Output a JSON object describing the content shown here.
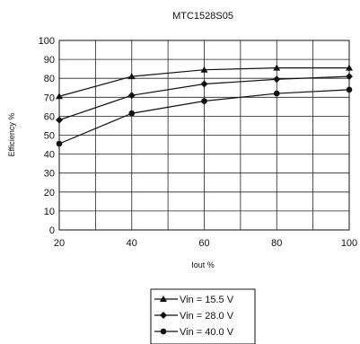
{
  "chart_data": {
    "type": "line",
    "title": "MTC1528S05",
    "xlabel": "Iout %",
    "ylabel": "Efficiency %",
    "xlim": [
      20,
      100
    ],
    "ylim": [
      0,
      100
    ],
    "x_ticks": [
      20,
      40,
      60,
      80,
      100
    ],
    "x_grid": [
      20,
      30,
      40,
      50,
      60,
      70,
      80,
      90,
      100
    ],
    "y_ticks": [
      0,
      10,
      20,
      30,
      40,
      50,
      60,
      70,
      80,
      90,
      100
    ],
    "grid": true,
    "legend_position": "bottom-center",
    "colors": {
      "line": "#111111",
      "grid": "#222222"
    },
    "series": [
      {
        "name": "Vin = 15.5 V",
        "marker": "triangle",
        "x": [
          20,
          40,
          60,
          80,
          100
        ],
        "y": [
          70.5,
          81,
          84.5,
          85.5,
          85.5
        ]
      },
      {
        "name": "Vin = 28.0 V",
        "marker": "diamond",
        "x": [
          20,
          40,
          60,
          80,
          100
        ],
        "y": [
          58,
          71,
          77,
          79.5,
          81
        ]
      },
      {
        "name": "Vin = 40.0 V",
        "marker": "circle",
        "x": [
          20,
          40,
          60,
          80,
          100
        ],
        "y": [
          45.5,
          61.5,
          68,
          72,
          74
        ]
      }
    ]
  }
}
